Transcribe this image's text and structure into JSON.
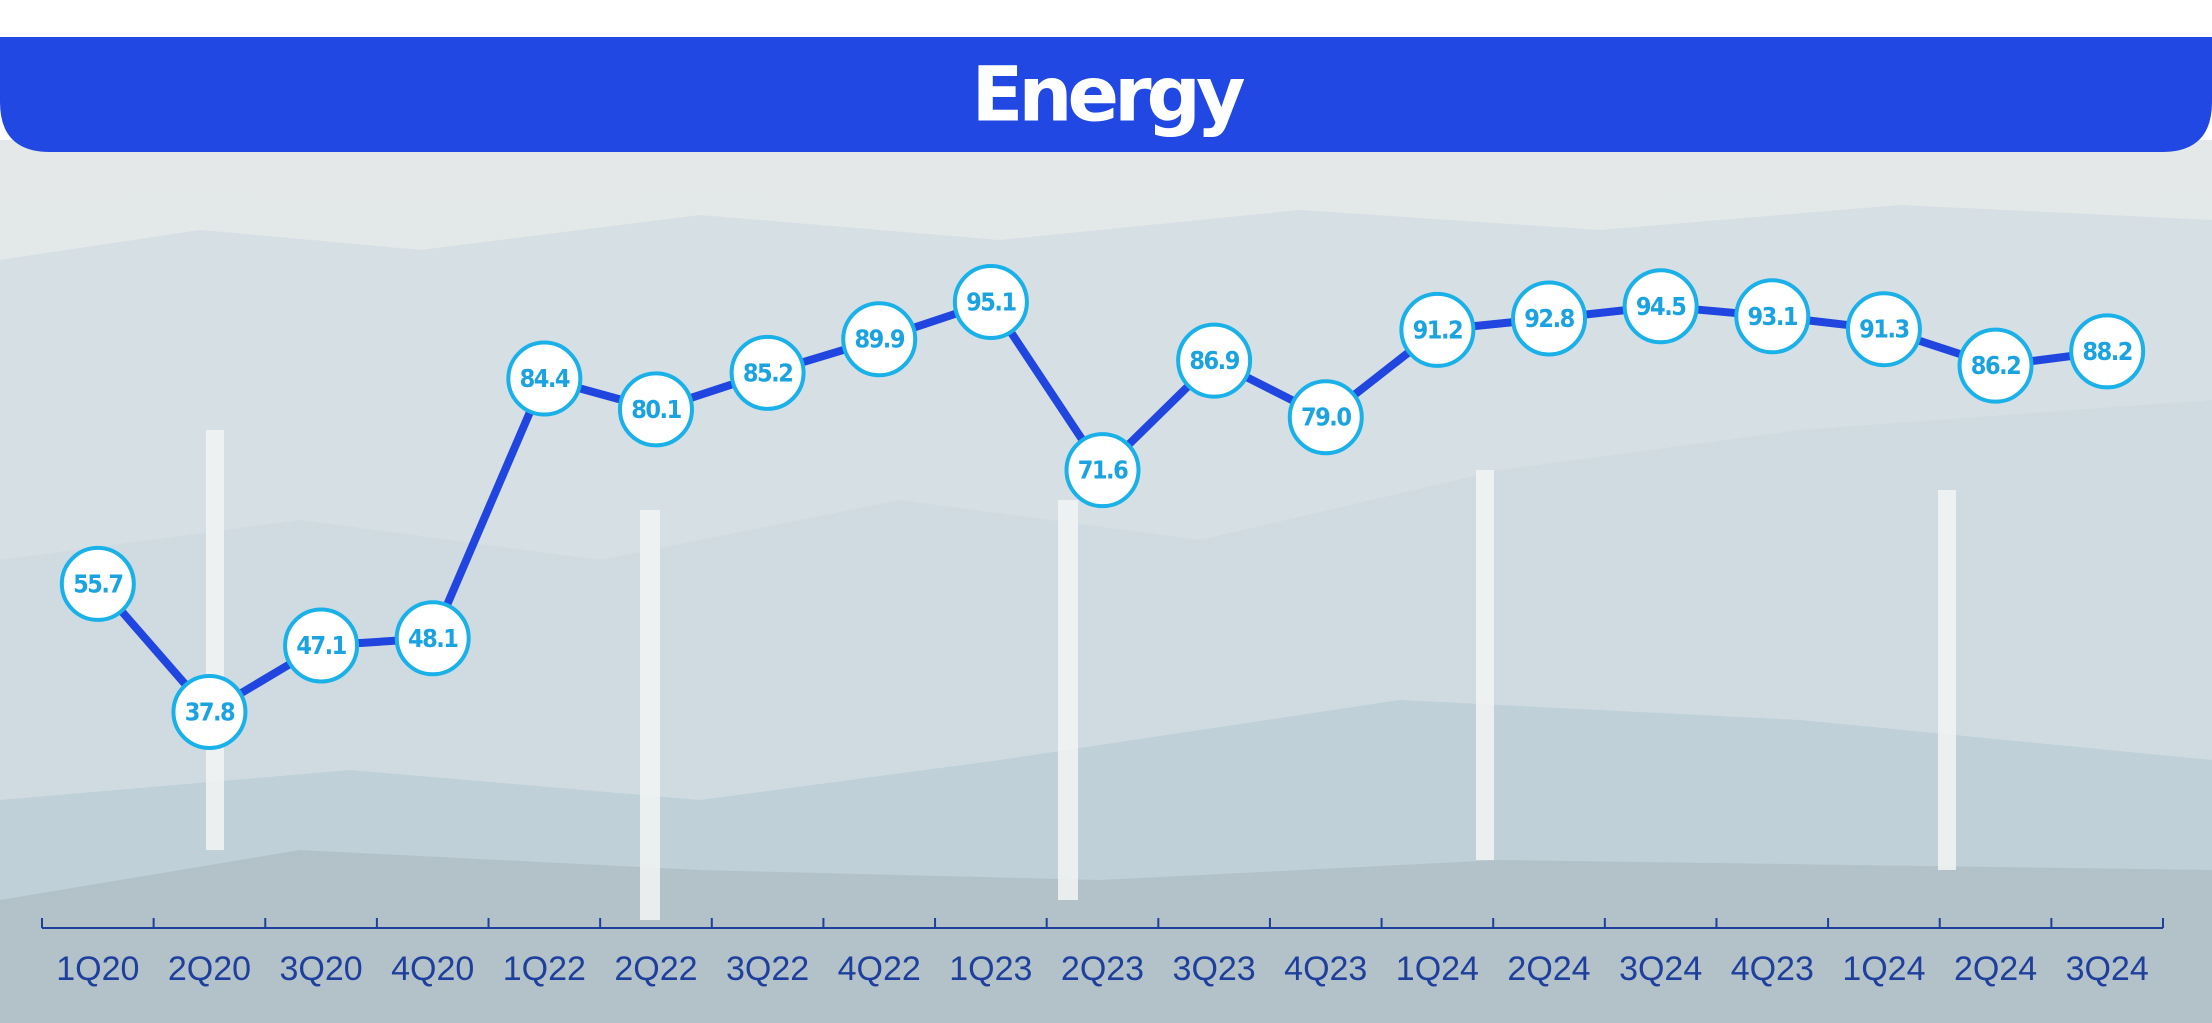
{
  "chart_data": {
    "type": "line",
    "title": "Energy",
    "categories": [
      "1Q20",
      "2Q20",
      "3Q20",
      "4Q20",
      "1Q22",
      "2Q22",
      "3Q22",
      "4Q22",
      "1Q23",
      "2Q23",
      "3Q23",
      "4Q23",
      "1Q24",
      "2Q24",
      "3Q24",
      "4Q23",
      "1Q24",
      "2Q24",
      "3Q24"
    ],
    "values": [
      55.7,
      37.8,
      47.1,
      48.1,
      84.4,
      80.1,
      85.2,
      89.9,
      95.1,
      71.6,
      86.9,
      79.0,
      91.2,
      92.8,
      94.5,
      93.1,
      91.3,
      86.2,
      88.2
    ],
    "value_labels": [
      "55.7",
      "37.8",
      "47.1",
      "48.1",
      "84.4",
      "80.1",
      "85.2",
      "89.9",
      "95.1",
      "71.6",
      "86.9",
      "79.0",
      "91.2",
      "92.8",
      "94.5",
      "93.1",
      "91.3",
      "86.2",
      "88.2"
    ],
    "color": "#2146e0",
    "marker_color": "#1ab0e8"
  }
}
